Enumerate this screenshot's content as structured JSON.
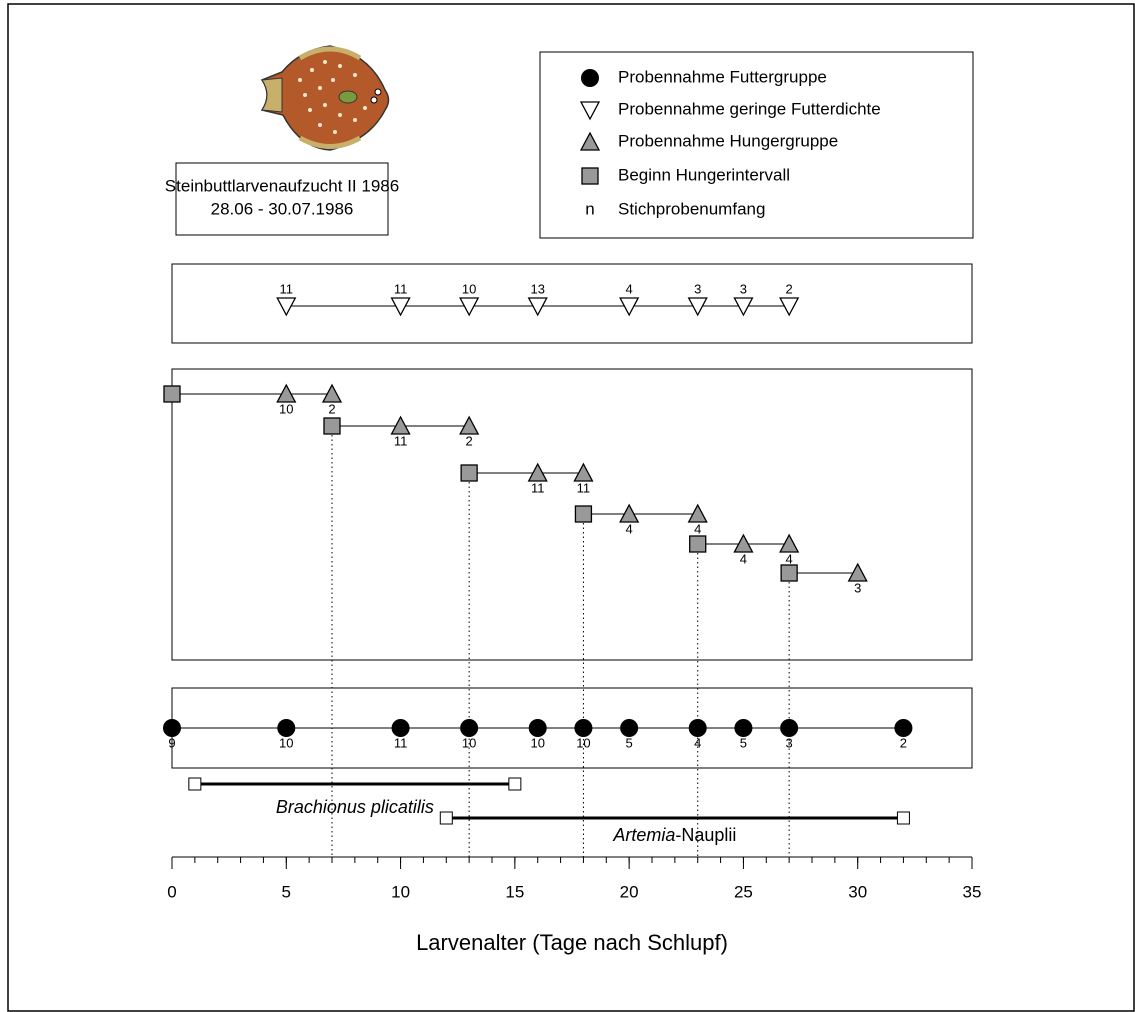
{
  "chart_data": {
    "type": "timeline",
    "title_lines": [
      "Steinbuttlarvenaufzucht II 1986",
      "28.06 - 30.07.1986"
    ],
    "legend": [
      "Probennahme Futtergruppe",
      "Probennahme geringe Futterdichte",
      "Probennahme Hungergruppe",
      "Beginn Hungerintervall",
      "Stichprobenumfang"
    ],
    "legend_n_symbol": "n",
    "xlabel": "Larvenalter (Tage nach Schlupf)",
    "xlim": [
      0,
      35
    ],
    "xticks": [
      0,
      5,
      10,
      15,
      20,
      25,
      30,
      35
    ],
    "xminorticks": [
      0,
      1,
      2,
      3,
      4,
      5,
      6,
      7,
      8,
      9,
      10,
      11,
      12,
      13,
      14,
      15,
      16,
      17,
      18,
      19,
      20,
      21,
      22,
      23,
      24,
      25,
      26,
      27,
      28,
      29,
      30,
      31,
      32,
      33,
      34,
      35
    ],
    "low_food": {
      "days": [
        5,
        10,
        13,
        16,
        20,
        23,
        25,
        27
      ],
      "n": [
        11,
        11,
        10,
        13,
        4,
        3,
        3,
        2
      ]
    },
    "hunger_groups": [
      {
        "start": 0,
        "days": [
          5,
          7
        ],
        "n": [
          10,
          2
        ]
      },
      {
        "start": 7,
        "days": [
          10,
          13
        ],
        "n": [
          11,
          2
        ]
      },
      {
        "start": 13,
        "days": [
          16,
          18
        ],
        "n": [
          11,
          11
        ]
      },
      {
        "start": 18,
        "days": [
          20,
          23
        ],
        "n": [
          4,
          4
        ]
      },
      {
        "start": 23,
        "days": [
          25,
          27
        ],
        "n": [
          4,
          4
        ]
      },
      {
        "start": 27,
        "days": [
          30
        ],
        "n": [
          3
        ]
      }
    ],
    "fed": {
      "days": [
        0,
        5,
        10,
        13,
        16,
        18,
        20,
        23,
        25,
        27,
        32
      ],
      "n": [
        9,
        10,
        11,
        10,
        10,
        10,
        5,
        4,
        5,
        3,
        2
      ]
    },
    "food": [
      {
        "label_italic": "Brachionus plicatilis",
        "label_rest": "",
        "from": 1,
        "to": 15
      },
      {
        "label_italic": "Artemia",
        "label_rest": "-Nauplii",
        "from": 12,
        "to": 32
      }
    ]
  }
}
